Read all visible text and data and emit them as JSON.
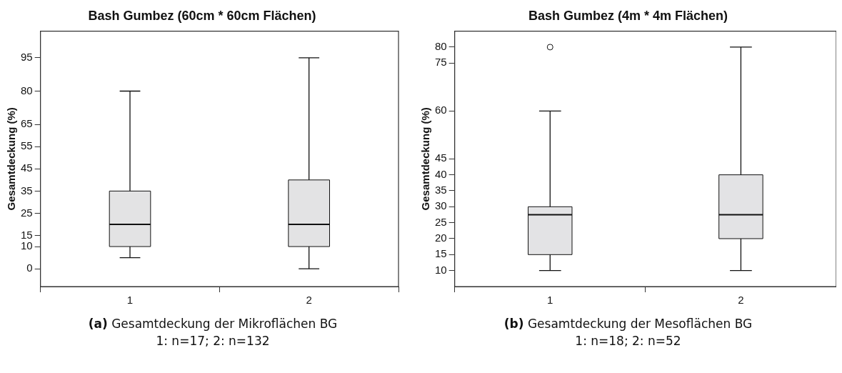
{
  "chart_data": [
    {
      "type": "box",
      "title": "Bash Gumbez (60cm * 60cm Flächen)",
      "ylabel": "Gesamtdeckung (%)",
      "categories": [
        "1",
        "2"
      ],
      "series": [
        {
          "color": "#e3e3e4",
          "boxes": [
            {
              "low": 5,
              "q1": 10,
              "median": 20,
              "q3": 35,
              "high": 80
            },
            {
              "low": 0,
              "q1": 10,
              "median": 20,
              "q3": 40,
              "high": 95
            }
          ]
        }
      ],
      "ylim": [
        -8,
        107
      ],
      "yticks": [
        0,
        10,
        15,
        25,
        35,
        45,
        55,
        65,
        80,
        95
      ],
      "grid": false,
      "legend": false,
      "annotations": [
        "(a) Gesamtdeckung der Mikroflächen BG",
        "1: n=17; 2: n=132"
      ]
    },
    {
      "type": "box",
      "title": "Bash Gumbez (4m * 4m Flächen)",
      "ylabel": "Gesamtdeckung (%)",
      "categories": [
        "1",
        "2"
      ],
      "series": [
        {
          "color": "#e3e3e5",
          "boxes": [
            {
              "low": 10,
              "q1": 15,
              "median": 27.5,
              "q3": 30,
              "high": 60,
              "outliers": [
                80
              ]
            },
            {
              "low": 10,
              "q1": 20,
              "median": 27.5,
              "q3": 40,
              "high": 80
            }
          ]
        }
      ],
      "ylim": [
        5,
        85
      ],
      "yticks": [
        10,
        15,
        20,
        25,
        30,
        35,
        40,
        45,
        60,
        75,
        80
      ],
      "grid": false,
      "legend": false,
      "annotations": [
        "(b) Gesamtdeckung der Mesoflächen BG",
        "1: n=18; 2: n=52"
      ]
    }
  ]
}
